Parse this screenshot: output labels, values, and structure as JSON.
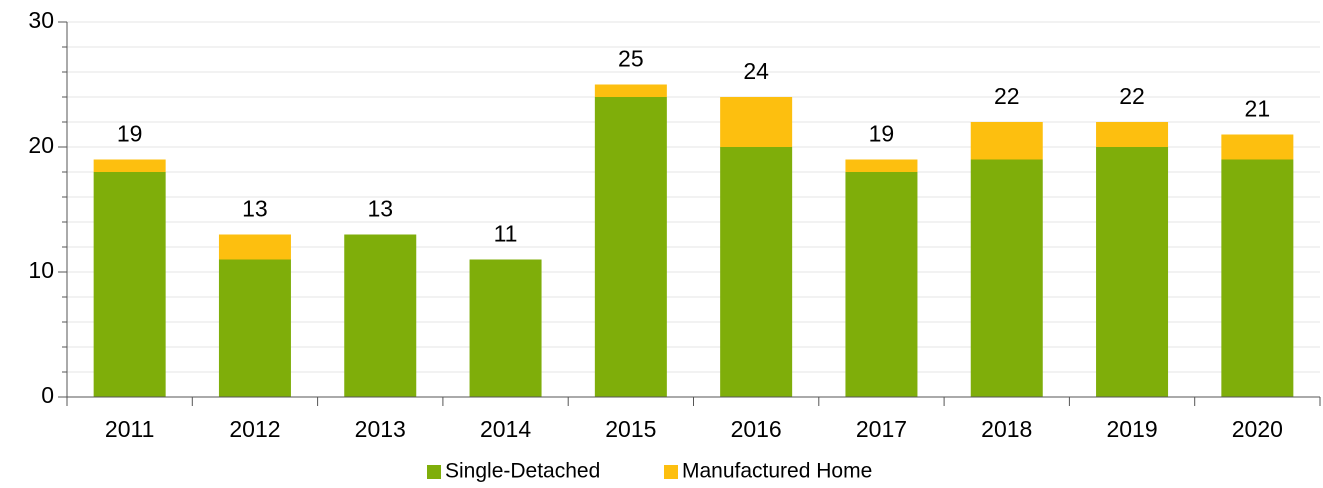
{
  "chart_data": {
    "type": "stacked_bar",
    "categories": [
      "2011",
      "2012",
      "2013",
      "2014",
      "2015",
      "2016",
      "2017",
      "2018",
      "2019",
      "2020"
    ],
    "series": [
      {
        "name": "Single-Detached",
        "color": "#7fae0a",
        "values": [
          18,
          11,
          13,
          11,
          24,
          20,
          18,
          19,
          20,
          19
        ]
      },
      {
        "name": "Manufactured Home",
        "color": "#fdbf0f",
        "values": [
          1,
          2,
          0,
          0,
          1,
          4,
          1,
          3,
          2,
          2
        ]
      }
    ],
    "totals": [
      19,
      13,
      13,
      11,
      25,
      24,
      19,
      22,
      22,
      21
    ],
    "ylim": [
      0,
      30
    ],
    "yticks": [
      0,
      10,
      20,
      30
    ],
    "yticks_minor": [
      2,
      4,
      6,
      8,
      12,
      14,
      16,
      18,
      22,
      24,
      26,
      28
    ],
    "grid": true,
    "legend": "bottom"
  }
}
